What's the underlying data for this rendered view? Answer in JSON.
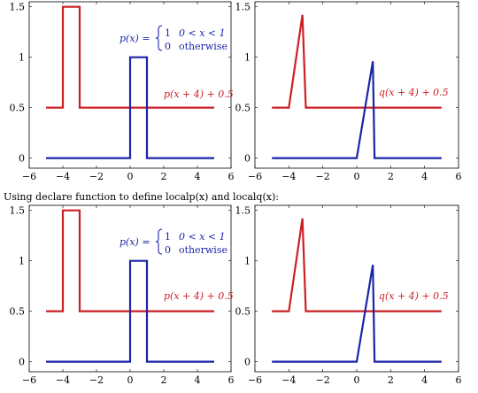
{
  "caption": "Using declare function to define localp(x) and localq(x):",
  "colors": {
    "red": "#cc1f24",
    "blue": "#1b25a8"
  },
  "piecewise": {
    "lhs": "p(x) =",
    "case1_value": "1",
    "case1_condition": "0 < x < 1",
    "case2_value": "0",
    "case2_condition": "otherwise"
  },
  "chart_data": [
    {
      "type": "line",
      "xlim": [
        -6,
        6
      ],
      "ylim": [
        -0.1,
        1.55
      ],
      "x_ticks": [
        "−6",
        "−4",
        "−2",
        "0",
        "2",
        "4",
        "6"
      ],
      "y_ticks": [
        "0",
        "0.5",
        "1",
        "1.5"
      ],
      "annotation": "p(x + 4) + 0.5",
      "series": [
        {
          "color": "red",
          "x": [
            -5,
            -4,
            -4,
            -3,
            -3,
            5
          ],
          "y": [
            0.5,
            0.5,
            1.5,
            1.5,
            0.5,
            0.5
          ]
        },
        {
          "color": "blue",
          "x": [
            -5,
            0,
            0,
            1,
            1,
            5
          ],
          "y": [
            0,
            0,
            1,
            1,
            0,
            0
          ]
        }
      ]
    },
    {
      "type": "line",
      "xlim": [
        -6,
        6
      ],
      "ylim": [
        -0.1,
        1.55
      ],
      "x_ticks": [
        "−6",
        "−4",
        "−2",
        "0",
        "2",
        "4",
        "6"
      ],
      "y_ticks": [
        "0",
        "0.5",
        "1",
        "1.5"
      ],
      "annotation": "q(x + 4) + 0.5",
      "series": [
        {
          "color": "red",
          "x": [
            -5,
            -4,
            -3.2,
            -3,
            5
          ],
          "y": [
            0.5,
            0.5,
            1.42,
            0.5,
            0.5
          ]
        },
        {
          "color": "blue",
          "x": [
            -5,
            0,
            0.95,
            1.05,
            5
          ],
          "y": [
            0,
            0,
            0.96,
            0,
            0
          ]
        }
      ]
    },
    {
      "type": "line",
      "xlim": [
        -6,
        6
      ],
      "ylim": [
        -0.1,
        1.55
      ],
      "x_ticks": [
        "−6",
        "−4",
        "−2",
        "0",
        "2",
        "4",
        "6"
      ],
      "y_ticks": [
        "0",
        "0.5",
        "1",
        "1.5"
      ],
      "annotation": "p(x + 4) + 0.5",
      "series": [
        {
          "color": "red",
          "x": [
            -5,
            -4,
            -4,
            -3,
            -3,
            5
          ],
          "y": [
            0.5,
            0.5,
            1.5,
            1.5,
            0.5,
            0.5
          ]
        },
        {
          "color": "blue",
          "x": [
            -5,
            0,
            0,
            1,
            1,
            5
          ],
          "y": [
            0,
            0,
            1,
            1,
            0,
            0
          ]
        }
      ]
    },
    {
      "type": "line",
      "xlim": [
        -6,
        6
      ],
      "ylim": [
        -0.1,
        1.55
      ],
      "x_ticks": [
        "−6",
        "−4",
        "−2",
        "0",
        "2",
        "4",
        "6"
      ],
      "y_ticks": [
        "0",
        "0.5",
        "1",
        "1.5"
      ],
      "annotation": "q(x + 4) + 0.5",
      "series": [
        {
          "color": "red",
          "x": [
            -5,
            -4,
            -3.2,
            -3,
            5
          ],
          "y": [
            0.5,
            0.5,
            1.42,
            0.5,
            0.5
          ]
        },
        {
          "color": "blue",
          "x": [
            -5,
            0,
            0.95,
            1.05,
            5
          ],
          "y": [
            0,
            0,
            0.96,
            0,
            0
          ]
        }
      ]
    }
  ]
}
